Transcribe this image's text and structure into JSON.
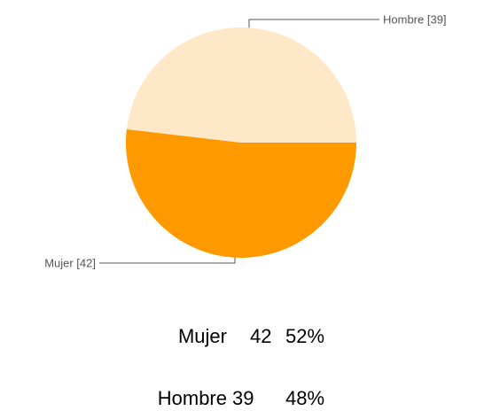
{
  "chart_data": {
    "type": "pie",
    "categories": [
      "Mujer",
      "Hombre"
    ],
    "values": [
      42,
      39
    ],
    "value_labels": [
      "Mujer [42]",
      "Hombre [39]"
    ],
    "colors": [
      "#ff9900",
      "#fee8c8"
    ],
    "summary": {
      "rows": [
        [
          "Mujer",
          42,
          "52%"
        ],
        [
          "Hombre",
          39,
          "48%"
        ]
      ]
    }
  }
}
